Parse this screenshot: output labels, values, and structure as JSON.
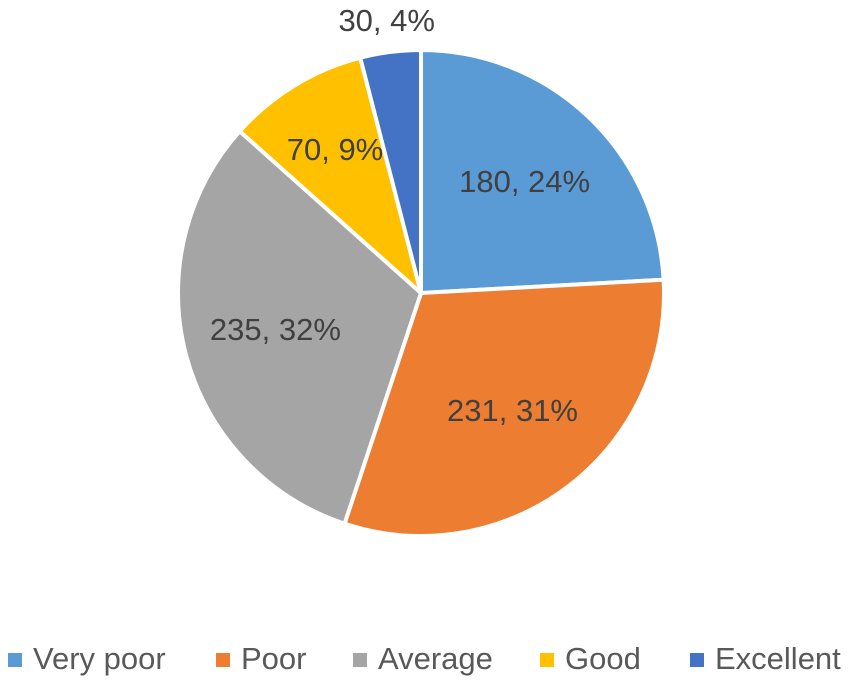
{
  "chart_data": {
    "type": "pie",
    "title": "",
    "categories": [
      "Very poor",
      "Poor",
      "Average",
      "Good",
      "Excellent"
    ],
    "values": [
      180,
      231,
      235,
      70,
      30
    ],
    "percent_labels": [
      "24%",
      "31%",
      "32%",
      "9%",
      "4%"
    ],
    "data_labels": [
      "180, 24%",
      "231, 31%",
      "235, 32%",
      "70, 9%",
      "30, 4%"
    ],
    "colors": [
      "#5B9BD5",
      "#ED7D31",
      "#A5A5A5",
      "#FFC000",
      "#4472C4"
    ],
    "start_angle": "12 o'clock",
    "direction": "clockwise",
    "slice_border_color": "#FFFFFF",
    "legend_position": "bottom",
    "data_label_color": "#404040",
    "legend_text_color": "#595959"
  }
}
